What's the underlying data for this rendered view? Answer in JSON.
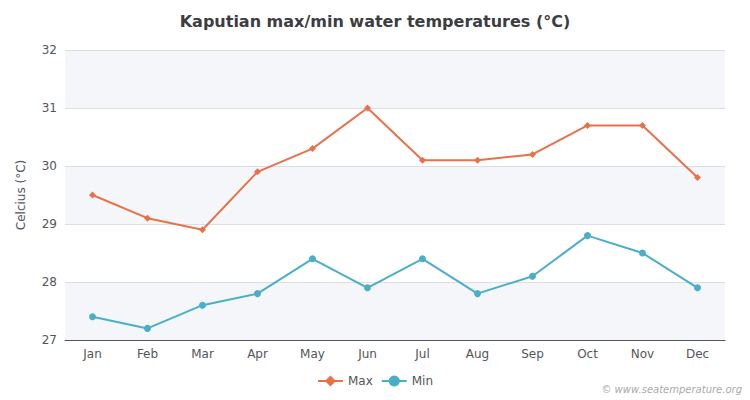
{
  "chart_data": {
    "type": "line",
    "title": "Kaputian max/min water temperatures (°C)",
    "ylabel": "Celcius (°C)",
    "categories": [
      "Jan",
      "Feb",
      "Mar",
      "Apr",
      "May",
      "Jun",
      "Jul",
      "Aug",
      "Sep",
      "Oct",
      "Nov",
      "Dec"
    ],
    "series": [
      {
        "name": "Max",
        "color": "#e8714a",
        "marker": "diamond",
        "values": [
          29.5,
          29.1,
          28.9,
          29.9,
          30.3,
          31.0,
          30.1,
          30.1,
          30.2,
          30.7,
          30.7,
          29.8
        ]
      },
      {
        "name": "Min",
        "color": "#4baec9",
        "marker": "circle",
        "values": [
          27.4,
          27.2,
          27.6,
          27.8,
          28.4,
          27.9,
          28.4,
          27.8,
          28.1,
          28.8,
          28.5,
          27.9
        ]
      }
    ],
    "ylim": [
      27,
      32
    ],
    "yticks": [
      27,
      28,
      29,
      30,
      31,
      32
    ],
    "grid": true,
    "legend": "bottom",
    "annotations": [
      "© www.seatemperature.org"
    ]
  }
}
